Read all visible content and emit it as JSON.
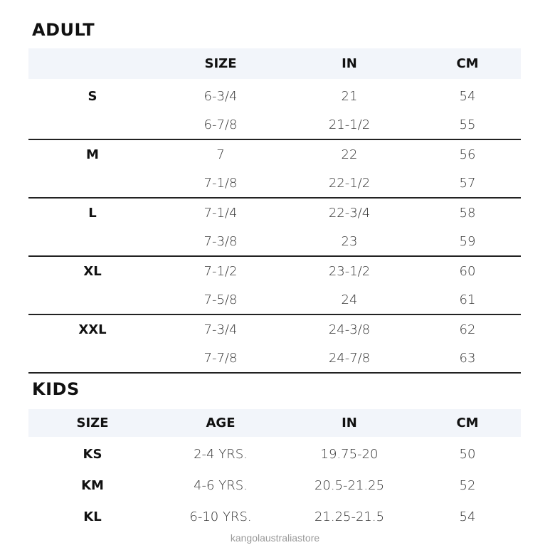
{
  "adult": {
    "title": "ADULT",
    "headers": [
      "",
      "SIZE",
      "IN",
      "CM"
    ],
    "groups": [
      {
        "label": "S",
        "rows": [
          [
            "6-3/4",
            "21",
            "54"
          ],
          [
            "6-7/8",
            "21-1/2",
            "55"
          ]
        ]
      },
      {
        "label": "M",
        "rows": [
          [
            "7",
            "22",
            "56"
          ],
          [
            "7-1/8",
            "22-1/2",
            "57"
          ]
        ]
      },
      {
        "label": "L",
        "rows": [
          [
            "7-1/4",
            "22-3/4",
            "58"
          ],
          [
            "7-3/8",
            "23",
            "59"
          ]
        ]
      },
      {
        "label": "XL",
        "rows": [
          [
            "7-1/2",
            "23-1/2",
            "60"
          ],
          [
            "7-5/8",
            "24",
            "61"
          ]
        ]
      },
      {
        "label": "XXL",
        "rows": [
          [
            "7-3/4",
            "24-3/8",
            "62"
          ],
          [
            "7-7/8",
            "24-7/8",
            "63"
          ]
        ]
      }
    ]
  },
  "kids": {
    "title": "KIDS",
    "headers": [
      "SIZE",
      "AGE",
      "IN",
      "CM"
    ],
    "rows": [
      [
        "KS",
        "2-4 YRS.",
        "19.75-20",
        "50"
      ],
      [
        "KM",
        "4-6 YRS.",
        "20.5-21.25",
        "52"
      ],
      [
        "KL",
        "6-10 YRS.",
        "21.25-21.5",
        "54"
      ]
    ]
  },
  "watermark": "kangolaustraliastore"
}
